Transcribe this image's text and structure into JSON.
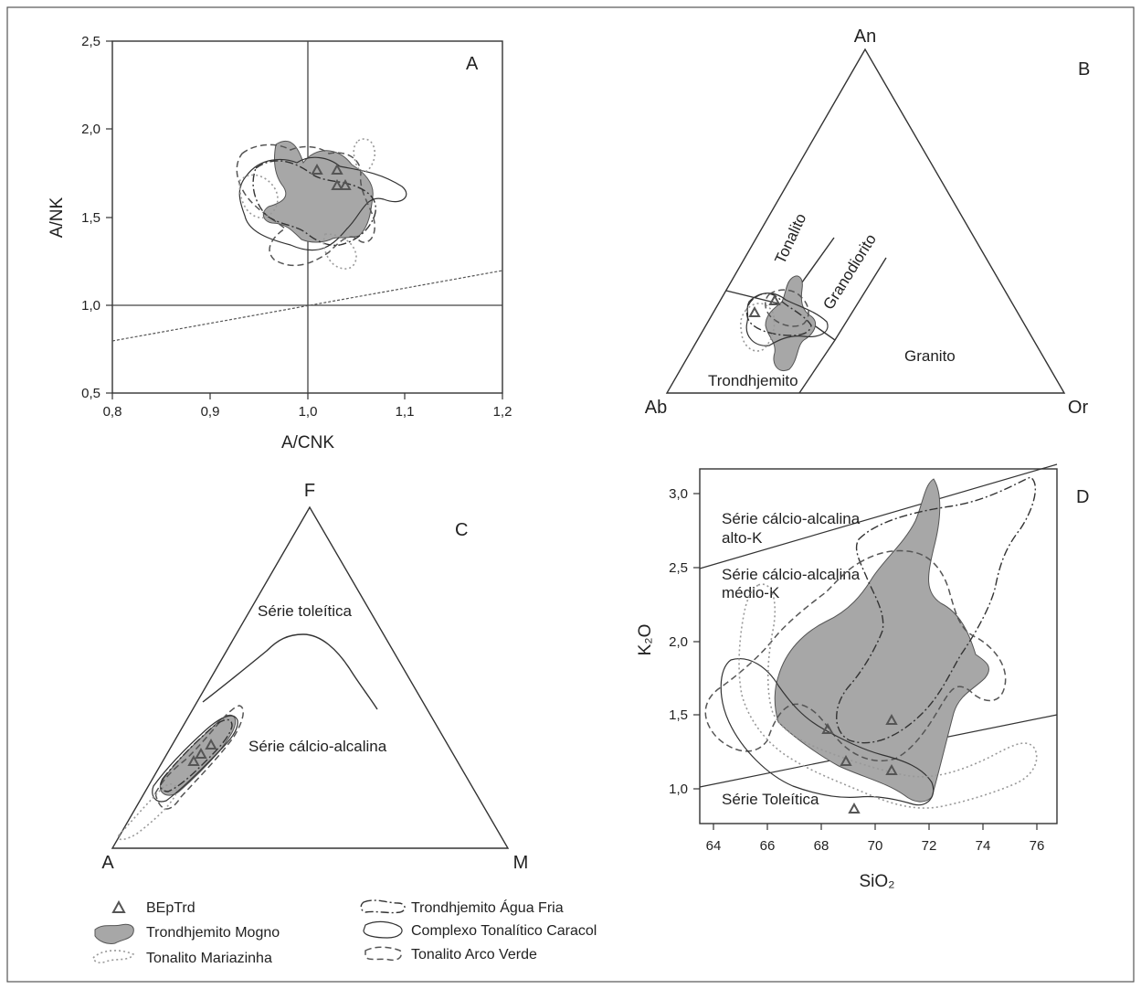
{
  "chart_data": [
    {
      "panel": "A",
      "type": "scatter",
      "xlabel": "A/CNK",
      "ylabel": "A/NK",
      "xlim": [
        0.8,
        1.2
      ],
      "ylim": [
        0.5,
        2.5
      ],
      "x_ticks": [
        "0,8",
        "0,9",
        "1,0",
        "1,1",
        "1,2"
      ],
      "y_ticks": [
        "0,5",
        "1,0",
        "1,5",
        "2,0",
        "2,5"
      ],
      "reference_lines": [
        {
          "type": "vertical",
          "x": 1.0
        },
        {
          "type": "horizontal",
          "y": 1.0
        },
        {
          "type": "dashed",
          "points": [
            [
              0.8,
              0.8
            ],
            [
              1.2,
              1.2
            ]
          ]
        }
      ],
      "series": [
        {
          "name": "BEpTrd",
          "points": [
            [
              1.01,
              1.76
            ],
            [
              1.03,
              1.76
            ],
            [
              1.03,
              1.67
            ],
            [
              1.04,
              1.67
            ]
          ]
        }
      ]
    },
    {
      "panel": "B",
      "type": "scatter",
      "vertices": [
        "An",
        "Ab",
        "Or"
      ],
      "fields": [
        "Tonalito",
        "Granodiorito",
        "Granito",
        "Trondhjemito"
      ],
      "series": [
        {
          "name": "BEpTrd",
          "points": [
            [
              0.12,
              0.27,
              0.61
            ],
            [
              0.09,
              0.22,
              0.69
            ]
          ]
        }
      ]
    },
    {
      "panel": "C",
      "type": "scatter",
      "vertices": [
        "F",
        "A",
        "M"
      ],
      "fields": [
        "Série toleítica",
        "Série cálcio-alcalina"
      ],
      "series": [
        {
          "name": "BEpTrd",
          "points": [
            [
              0.32,
              0.63,
              0.05
            ],
            [
              0.3,
              0.66,
              0.04
            ],
            [
              0.28,
              0.68,
              0.04
            ]
          ]
        }
      ]
    },
    {
      "panel": "D",
      "type": "scatter",
      "xlabel": "SiO₂",
      "ylabel": "K₂O",
      "xlim": [
        63.5,
        76.7
      ],
      "ylim": [
        0.6,
        3.2
      ],
      "x_ticks": [
        "64",
        "66",
        "68",
        "70",
        "72",
        "74",
        "76"
      ],
      "y_ticks": [
        "1,0",
        "1,5",
        "2,0",
        "2,5",
        "3,0"
      ],
      "fields": [
        "Série cálcio-alcalina alto-K",
        "Série cálcio-alcalina médio-K",
        "Série Toleítica"
      ],
      "series": [
        {
          "name": "BEpTrd",
          "points": [
            [
              68.0,
              1.4
            ],
            [
              68.7,
              1.18
            ],
            [
              70.4,
              1.47
            ],
            [
              70.4,
              1.12
            ],
            [
              69.1,
              0.85
            ]
          ]
        }
      ]
    }
  ],
  "panelA": {
    "title": "A",
    "xlabel": "A/CNK",
    "ylabel": "A/NK",
    "xticks": [
      "0,8",
      "0,9",
      "1,0",
      "1,1",
      "1,2"
    ],
    "yticks": [
      "0,5",
      "1,0",
      "1,5",
      "2,0",
      "2,5"
    ]
  },
  "panelB": {
    "title": "B",
    "apex": "An",
    "left": "Ab",
    "right": "Or",
    "fields": {
      "tonalito": "Tonalito",
      "granodiorito": "Granodiorito",
      "granito": "Granito",
      "trondhjemito": "Trondhjemito"
    }
  },
  "panelC": {
    "title": "C",
    "apex": "F",
    "left": "A",
    "right": "M",
    "fields": {
      "toleitica": "Série toleítica",
      "calcio": "Série cálcio-alcalina"
    }
  },
  "panelD": {
    "title": "D",
    "xlabel": "SiO₂",
    "ylabel": "K₂O",
    "xticks": [
      "64",
      "66",
      "68",
      "70",
      "72",
      "74",
      "76"
    ],
    "yticks": [
      "1,0",
      "1,5",
      "2,0",
      "2,5",
      "3,0"
    ],
    "fields": {
      "altoK_1": "Série cálcio-alcalina",
      "altoK_2": "alto-K",
      "medioK_1": "Série cálcio-alcalina",
      "medioK_2": "médio-K",
      "toleitica": "Série Toleítica"
    }
  },
  "legend": [
    {
      "key": "bep",
      "label": "BEpTrd"
    },
    {
      "key": "mogno",
      "label": "Trondhjemito Mogno"
    },
    {
      "key": "mariazinha",
      "label": "Tonalito Mariazinha"
    },
    {
      "key": "aguafria",
      "label": "Trondhjemito Água Fria"
    },
    {
      "key": "caracol",
      "label": "Complexo Tonalítico Caracol"
    },
    {
      "key": "arcoverde",
      "label": "Tonalito Arco Verde"
    }
  ]
}
